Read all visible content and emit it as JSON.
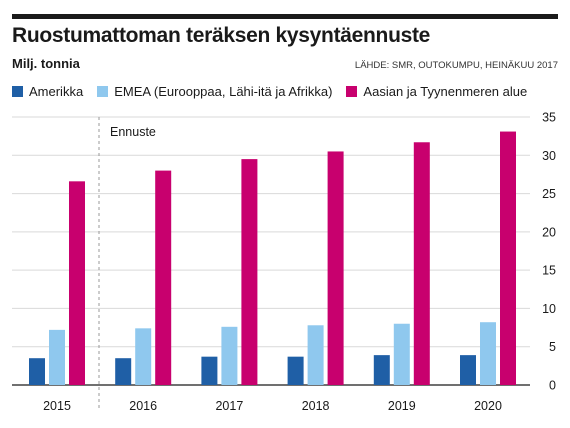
{
  "header": {
    "title": "Ruostumattoman teräksen kysyntäennuste",
    "subtitle": "Milj. tonnia",
    "source": "LÄHDE: SMR, OUTOKUMPU, HEINÄKUU 2017"
  },
  "colors": {
    "amerikka": "#1f5fa6",
    "emea": "#8fc8ee",
    "aasia": "#c8006e",
    "grid": "#d9d9d9"
  },
  "chart_data": {
    "type": "bar",
    "title": "Ruostumattoman teräksen kysyntäennuste",
    "ylabel": "Milj. tonnia",
    "categories": [
      "2015",
      "2016",
      "2017",
      "2018",
      "2019",
      "2020"
    ],
    "series": [
      {
        "name": "Amerikka",
        "values": [
          3.5,
          3.5,
          3.7,
          3.7,
          3.9,
          3.9
        ]
      },
      {
        "name": "EMEA (Eurooppaa, Lähi-itä ja Afrikka)",
        "values": [
          7.2,
          7.4,
          7.6,
          7.8,
          8.0,
          8.2
        ]
      },
      {
        "name": "Aasian ja Tyynenmeren alue",
        "values": [
          26.6,
          28.0,
          29.5,
          30.5,
          31.7,
          33.1
        ]
      }
    ],
    "ylim": [
      0,
      35
    ],
    "yticks": [
      0,
      5,
      10,
      15,
      20,
      25,
      30,
      35
    ],
    "grid": true,
    "legend_position": "top",
    "annotation": "Ennuste"
  }
}
